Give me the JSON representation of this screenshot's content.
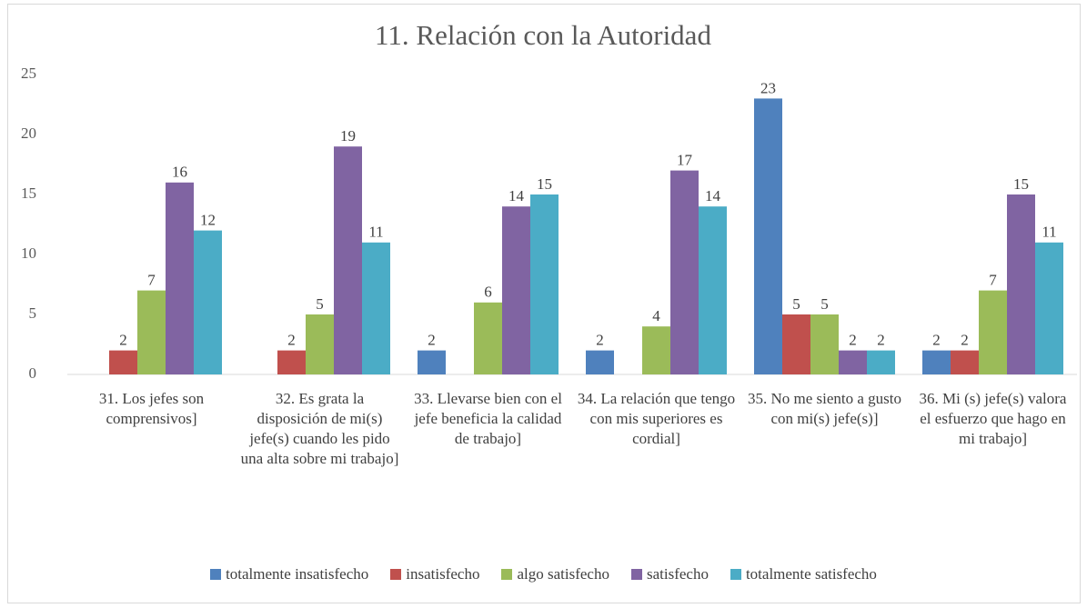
{
  "chart_data": {
    "type": "bar",
    "title": "11. Relación con la Autoridad",
    "categories": [
      "31. Los jefes son comprensivos]",
      "32. Es grata la disposición de mi(s) jefe(s) cuando les pido una alta sobre mi trabajo]",
      "33. Llevarse bien con el jefe beneficia la calidad de trabajo]",
      "34. La relación que tengo con mis superiores es cordial]",
      "35. No me siento a gusto con mi(s) jefe(s)]",
      "36. Mi (s) jefe(s) valora el esfuerzo que hago en mi trabajo]"
    ],
    "series": [
      {
        "name": "totalmente insatisfecho",
        "color": "#4f81bd",
        "values": [
          null,
          null,
          2,
          2,
          23,
          2
        ]
      },
      {
        "name": "insatisfecho",
        "color": "#c0504d",
        "values": [
          2,
          2,
          null,
          null,
          5,
          2
        ]
      },
      {
        "name": "algo satisfecho",
        "color": "#9bbb59",
        "values": [
          7,
          5,
          6,
          4,
          5,
          7
        ]
      },
      {
        "name": "satisfecho",
        "color": "#8064a2",
        "values": [
          16,
          19,
          14,
          17,
          2,
          15
        ]
      },
      {
        "name": "totalmente satisfecho",
        "color": "#4bacc6",
        "values": [
          12,
          11,
          15,
          14,
          2,
          11
        ]
      }
    ],
    "ylim": [
      0,
      25
    ],
    "yticks": [
      0,
      5,
      10,
      15,
      20,
      25
    ],
    "grid": false
  }
}
